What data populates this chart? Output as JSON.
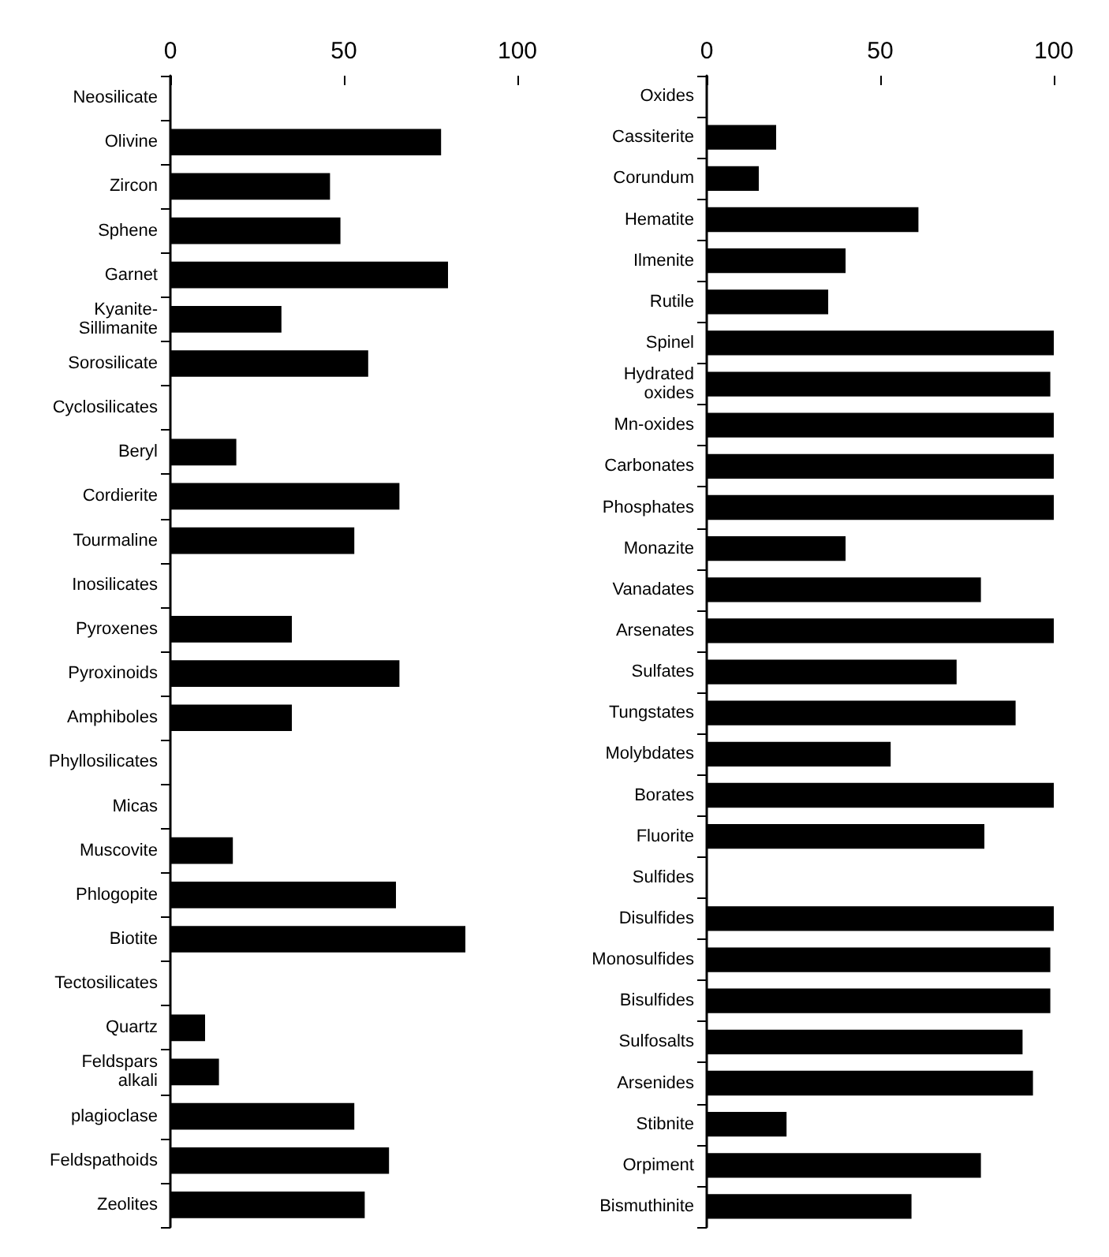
{
  "chart_data": [
    {
      "type": "bar",
      "orientation": "horizontal",
      "color": "#000000",
      "grid": false,
      "xlim": [
        0,
        100
      ],
      "xticks": [
        0,
        50,
        100
      ],
      "categories": [
        "Neosilicate",
        "Olivine",
        "Zircon",
        "Sphene",
        "Garnet",
        "Kyanite-\nSillimanite",
        "Sorosilicate",
        "Cyclosilicates",
        "Beryl",
        "Cordierite",
        "Tourmaline",
        "Inosilicates",
        "Pyroxenes",
        "Pyroxinoids",
        "Amphiboles",
        "Phyllosilicates",
        "Micas",
        "Muscovite",
        "Phlogopite",
        "Biotite",
        "Tectosilicates",
        "Quartz",
        "Feldspars\nalkali",
        "plagioclase",
        "Feldspathoids",
        "Zeolites"
      ],
      "values": [
        null,
        78,
        46,
        49,
        80,
        32,
        57,
        null,
        19,
        66,
        53,
        null,
        35,
        66,
        35,
        null,
        null,
        18,
        65,
        85,
        null,
        10,
        14,
        53,
        63,
        56
      ]
    },
    {
      "type": "bar",
      "orientation": "horizontal",
      "color": "#000000",
      "grid": false,
      "xlim": [
        0,
        100
      ],
      "xticks": [
        0,
        50,
        100
      ],
      "categories": [
        "Oxides",
        "Cassiterite",
        "Corundum",
        "Hematite",
        "Ilmenite",
        "Rutile",
        "Spinel",
        "Hydrated\noxides",
        "Mn-oxides",
        "Carbonates",
        "Phosphates",
        "Monazite",
        "Vanadates",
        "Arsenates",
        "Sulfates",
        "Tungstates",
        "Molybdates",
        "Borates",
        "Fluorite",
        "Sulfides",
        "Disulfides",
        "Monosulfides",
        "Bisulfides",
        "Sulfosalts",
        "Arsenides",
        "Stibnite",
        "Orpiment",
        "Bismuthinite"
      ],
      "values": [
        null,
        20,
        15,
        61,
        40,
        35,
        100,
        99,
        100,
        100,
        100,
        40,
        79,
        100,
        72,
        89,
        53,
        100,
        80,
        null,
        100,
        99,
        99,
        91,
        94,
        23,
        79,
        59
      ]
    }
  ]
}
